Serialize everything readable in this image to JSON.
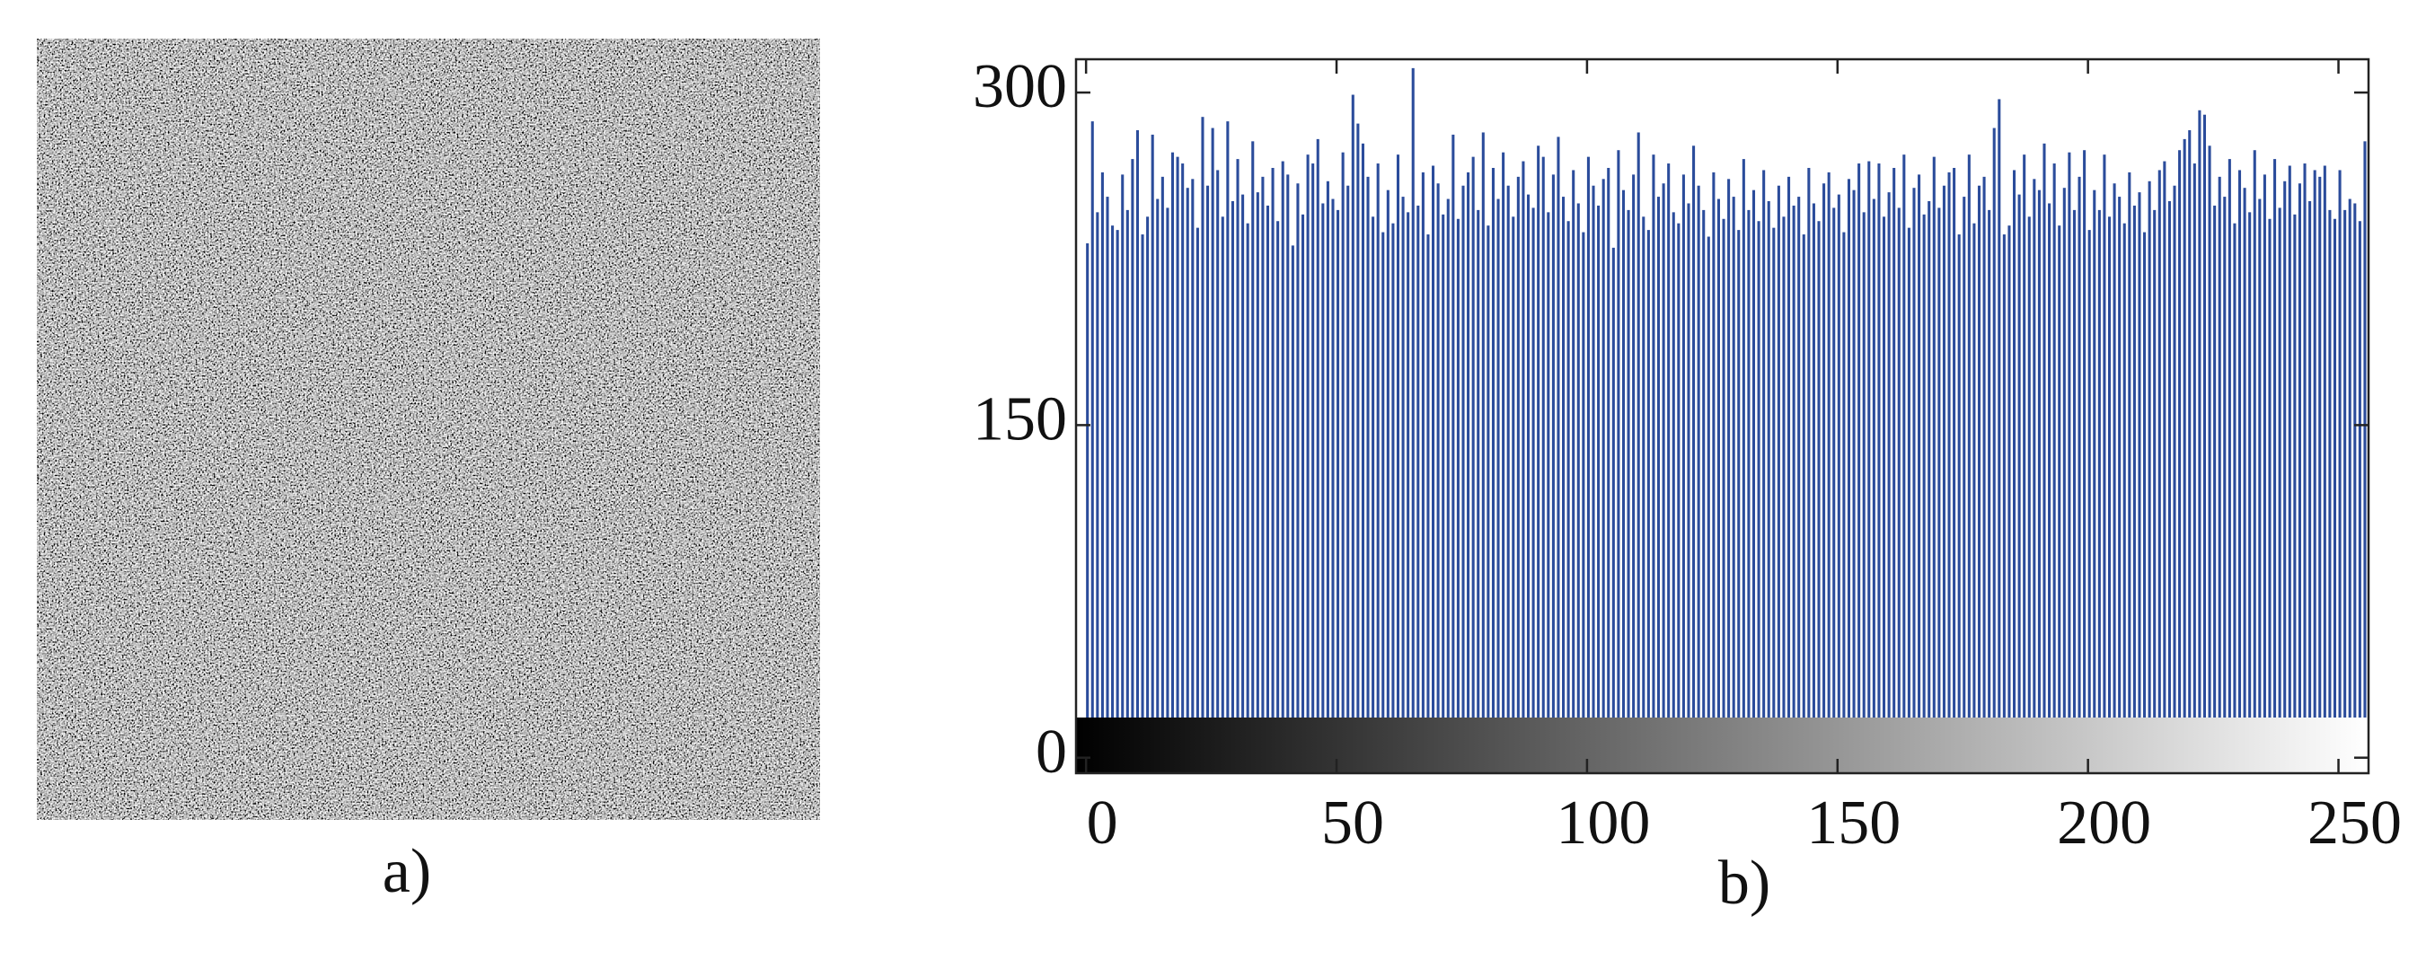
{
  "panel_a": {
    "label": "a)"
  },
  "chart_data": {
    "type": "histogram",
    "label": "b)",
    "color": "#2b4c9b",
    "bins": [
      0,
      1,
      2,
      3,
      4,
      5,
      6,
      7,
      8,
      9,
      10,
      11,
      12,
      13,
      14,
      15,
      16,
      17,
      18,
      19,
      20,
      21,
      22,
      23,
      24,
      25,
      26,
      27,
      28,
      29,
      30,
      31,
      32,
      33,
      34,
      35,
      36,
      37,
      38,
      39,
      40,
      41,
      42,
      43,
      44,
      45,
      46,
      47,
      48,
      49,
      50,
      51,
      52,
      53,
      54,
      55,
      56,
      57,
      58,
      59,
      60,
      61,
      62,
      63,
      64,
      65,
      66,
      67,
      68,
      69,
      70,
      71,
      72,
      73,
      74,
      75,
      76,
      77,
      78,
      79,
      80,
      81,
      82,
      83,
      84,
      85,
      86,
      87,
      88,
      89,
      90,
      91,
      92,
      93,
      94,
      95,
      96,
      97,
      98,
      99,
      100,
      101,
      102,
      103,
      104,
      105,
      106,
      107,
      108,
      109,
      110,
      111,
      112,
      113,
      114,
      115,
      116,
      117,
      118,
      119,
      120,
      121,
      122,
      123,
      124,
      125,
      126,
      127,
      128,
      129,
      130,
      131,
      132,
      133,
      134,
      135,
      136,
      137,
      138,
      139,
      140,
      141,
      142,
      143,
      144,
      145,
      146,
      147,
      148,
      149,
      150,
      151,
      152,
      153,
      154,
      155,
      156,
      157,
      158,
      159,
      160,
      161,
      162,
      163,
      164,
      165,
      166,
      167,
      168,
      169,
      170,
      171,
      172,
      173,
      174,
      175,
      176,
      177,
      178,
      179,
      180,
      181,
      182,
      183,
      184,
      185,
      186,
      187,
      188,
      189,
      190,
      191,
      192,
      193,
      194,
      195,
      196,
      197,
      198,
      199,
      200,
      201,
      202,
      203,
      204,
      205,
      206,
      207,
      208,
      209,
      210,
      211,
      212,
      213,
      214,
      215,
      216,
      217,
      218,
      219,
      220,
      221,
      222,
      223,
      224,
      225,
      226,
      227,
      228,
      229,
      230,
      231,
      232,
      233,
      234,
      235,
      236,
      237,
      238,
      239,
      240,
      241,
      242,
      243,
      244,
      245,
      246,
      247,
      248,
      249,
      250,
      251,
      252,
      253,
      254,
      255,
      256
    ],
    "values": [
      232,
      287,
      246,
      264,
      253,
      240,
      238,
      263,
      247,
      270,
      283,
      236,
      244,
      281,
      252,
      262,
      248,
      273,
      271,
      268,
      257,
      261,
      239,
      289,
      258,
      284,
      265,
      244,
      287,
      251,
      270,
      254,
      241,
      278,
      255,
      262,
      249,
      266,
      242,
      269,
      263,
      231,
      259,
      245,
      272,
      268,
      279,
      250,
      260,
      252,
      247,
      273,
      258,
      299,
      286,
      277,
      262,
      244,
      268,
      237,
      256,
      241,
      272,
      253,
      246,
      311,
      249,
      264,
      236,
      267,
      259,
      245,
      252,
      281,
      243,
      258,
      264,
      271,
      247,
      282,
      240,
      266,
      252,
      273,
      258,
      244,
      262,
      269,
      254,
      248,
      276,
      271,
      246,
      263,
      280,
      253,
      242,
      265,
      250,
      237,
      271,
      258,
      249,
      261,
      266,
      230,
      274,
      256,
      247,
      263,
      282,
      244,
      238,
      272,
      253,
      259,
      268,
      246,
      241,
      263,
      250,
      276,
      258,
      247,
      235,
      264,
      252,
      243,
      261,
      253,
      238,
      270,
      247,
      256,
      242,
      265,
      251,
      239,
      258,
      244,
      262,
      249,
      253,
      236,
      266,
      250,
      242,
      259,
      264,
      248,
      254,
      237,
      261,
      256,
      268,
      246,
      269,
      252,
      268,
      244,
      255,
      266,
      248,
      272,
      239,
      257,
      263,
      245,
      251,
      271,
      248,
      258,
      264,
      266,
      236,
      253,
      272,
      241,
      258,
      262,
      247,
      284,
      297,
      236,
      240,
      265,
      254,
      272,
      244,
      261,
      256,
      277,
      250,
      268,
      240,
      257,
      273,
      247,
      262,
      274,
      238,
      256,
      247,
      272,
      244,
      259,
      253,
      241,
      264,
      249,
      255,
      237,
      260,
      247,
      265,
      269,
      251,
      258,
      274,
      279,
      283,
      268,
      292,
      290,
      276,
      249,
      262,
      253,
      270,
      241,
      265,
      257,
      246,
      274,
      252,
      263,
      243,
      270,
      248,
      260,
      267,
      245,
      259,
      268,
      251,
      265,
      262,
      267,
      247,
      243,
      265,
      247,
      252,
      250,
      242,
      278
    ],
    "xlim": [
      -2,
      256
    ],
    "ylim": [
      -7,
      315
    ],
    "xticks": [
      0,
      50,
      100,
      150,
      200,
      250
    ],
    "yticks": [
      0,
      150,
      300
    ]
  }
}
